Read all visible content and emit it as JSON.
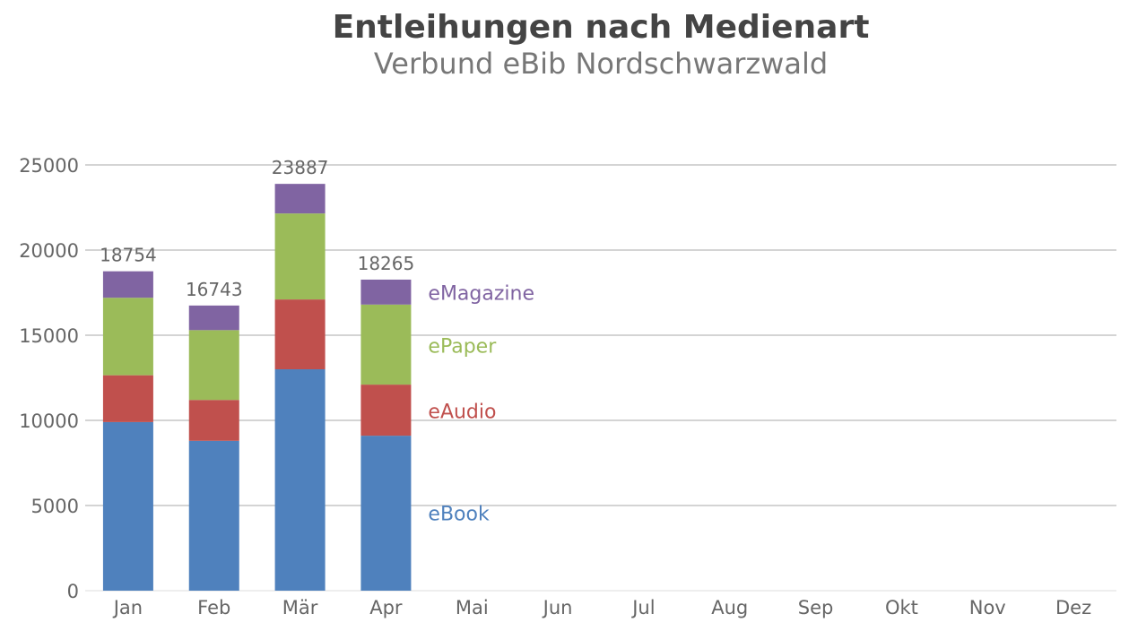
{
  "chart_data": {
    "type": "bar",
    "stacked": true,
    "title": "Entleihungen nach Medienart",
    "subtitle": "Verbund eBib Nordschwarzwald",
    "categories": [
      "Jan",
      "Feb",
      "Mär",
      "Apr",
      "Mai",
      "Jun",
      "Jul",
      "Aug",
      "Sep",
      "Okt",
      "Nov",
      "Dez"
    ],
    "series": [
      {
        "name": "eBook",
        "color": "#4f81bd",
        "values": [
          9900,
          8800,
          13000,
          9100,
          null,
          null,
          null,
          null,
          null,
          null,
          null,
          null
        ]
      },
      {
        "name": "eAudio",
        "color": "#c0504d",
        "values": [
          2750,
          2400,
          4100,
          3000,
          null,
          null,
          null,
          null,
          null,
          null,
          null,
          null
        ]
      },
      {
        "name": "ePaper",
        "color": "#9bbb59",
        "values": [
          4550,
          4100,
          5050,
          4700,
          null,
          null,
          null,
          null,
          null,
          null,
          null,
          null
        ]
      },
      {
        "name": "eMagazine",
        "color": "#8064a2",
        "values": [
          1554,
          1443,
          1737,
          1465,
          null,
          null,
          null,
          null,
          null,
          null,
          null,
          null
        ]
      }
    ],
    "totals": [
      18754,
      16743,
      23887,
      18265,
      null,
      null,
      null,
      null,
      null,
      null,
      null,
      null
    ],
    "yticks": [
      0,
      5000,
      10000,
      15000,
      20000,
      25000
    ],
    "ylim": [
      0,
      25000
    ],
    "grid": true,
    "legend": "inline labels right of last bar"
  }
}
